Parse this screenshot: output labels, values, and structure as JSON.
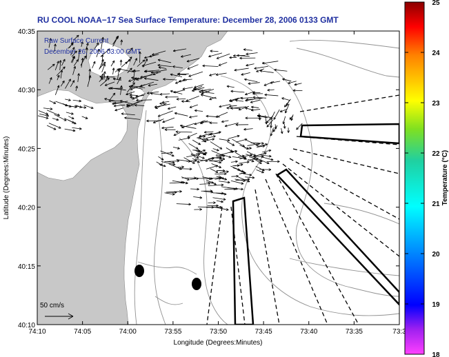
{
  "title": "RU COOL  NOAA−17  Sea Surface Temperature:  December 28, 2006 0133 GMT",
  "legend": {
    "line1": "Raw Surface Current",
    "line2": "December 26, 2006 03:00 GMT"
  },
  "scale_label": "50 cm/s",
  "axes": {
    "xlabel": "Longitude (Degrees:Minutes)",
    "ylabel": "Latitude (Degrees:Minutes)",
    "xticks": [
      "74:10",
      "74:05",
      "74:00",
      "73:55",
      "73:50",
      "73:45",
      "73:40",
      "73:35",
      "73:3"
    ],
    "yticks": [
      "40:35",
      "40:30",
      "40:25",
      "40:20",
      "40:15",
      "40:10"
    ]
  },
  "colorbar": {
    "label": "Temperature (°C)",
    "ticks": [
      "25",
      "24",
      "23",
      "22",
      "21",
      "20",
      "19",
      "18"
    ],
    "min": 18,
    "max": 25
  },
  "colors": {
    "title": "#1f2fa0",
    "legend_text": "#2030a0",
    "land": "#c8c8c8",
    "ocean": "#ffffff",
    "contour": "#909090",
    "vector": "#000000"
  }
}
